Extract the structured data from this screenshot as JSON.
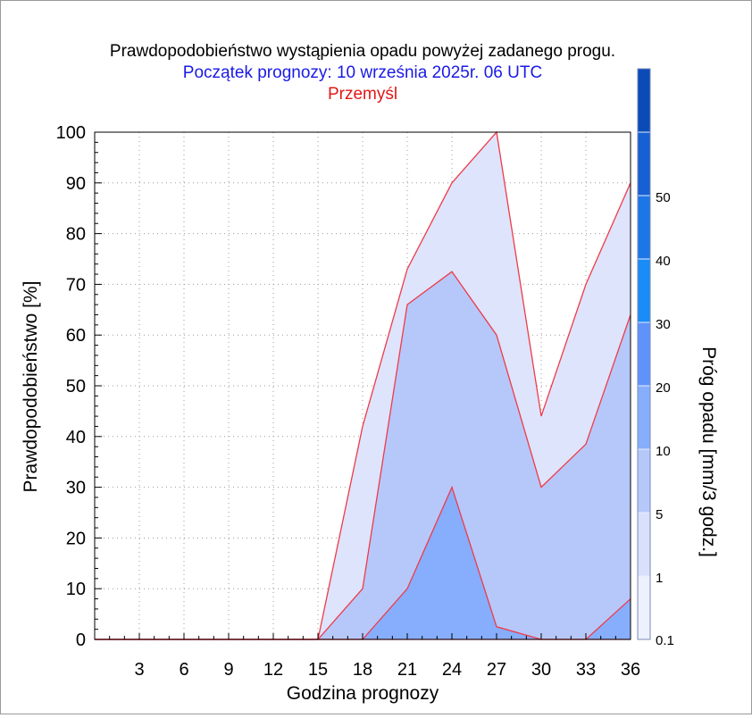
{
  "chart_data": {
    "type": "area",
    "title": "Prawdopodobieństwo wystąpienia opadu powyżej zadanego progu.",
    "subtitle": "Początek prognozy: 10 września 2025r. 06 UTC",
    "location": "Przemyśl",
    "xlabel": "Godzina prognozy",
    "ylabel": "Prawdopodobieństwo [%]",
    "colorbar_label": "Próg opadu [mm/3 godz.]",
    "x": [
      3,
      6,
      9,
      12,
      15,
      18,
      21,
      24,
      27,
      30,
      33,
      36
    ],
    "x_ticks": [
      "3",
      "6",
      "9",
      "12",
      "15",
      "18",
      "21",
      "24",
      "27",
      "30",
      "33",
      "36"
    ],
    "xlim": [
      0,
      36
    ],
    "ylim": [
      0,
      100
    ],
    "y_ticks": [
      "0",
      "10",
      "20",
      "30",
      "40",
      "50",
      "60",
      "70",
      "80",
      "90",
      "100"
    ],
    "grid": true,
    "series": [
      {
        "name": "0.1",
        "color": "#dde4fc",
        "values": [
          0,
          0,
          0,
          0,
          0,
          42,
          73,
          90,
          100,
          44,
          70,
          90
        ]
      },
      {
        "name": "1",
        "color": "#b6c8fa",
        "values": [
          0,
          0,
          0,
          0,
          0,
          10,
          66,
          72.5,
          60,
          30,
          38.5,
          64
        ]
      },
      {
        "name": "5",
        "color": "#86aefc",
        "values": [
          0,
          0,
          0,
          0,
          0,
          0,
          10,
          30,
          2.5,
          0,
          0,
          8
        ]
      },
      {
        "name": "10",
        "color": "#5f93fb",
        "values": [
          0,
          0,
          0,
          0,
          0,
          0,
          0,
          0,
          0,
          0,
          0,
          0
        ]
      }
    ],
    "line_color": "#f03a48",
    "colorbar": {
      "levels": [
        {
          "label": "0.1",
          "color": "#edf0fd"
        },
        {
          "label": "1",
          "color": "#d8e0fb"
        },
        {
          "label": "5",
          "color": "#b6c8fa"
        },
        {
          "label": "10",
          "color": "#86aefc"
        },
        {
          "label": "20",
          "color": "#5f93fb"
        },
        {
          "label": "30",
          "color": "#1a8cf7"
        },
        {
          "label": "40",
          "color": "#1d76e6"
        },
        {
          "label": "50",
          "color": "#1560d2"
        },
        {
          "label": "",
          "color": "#0a4bb8"
        }
      ]
    },
    "colors": {
      "title": "#000000",
      "subtitle": "#1a1ae6",
      "location": "#e01818"
    }
  }
}
